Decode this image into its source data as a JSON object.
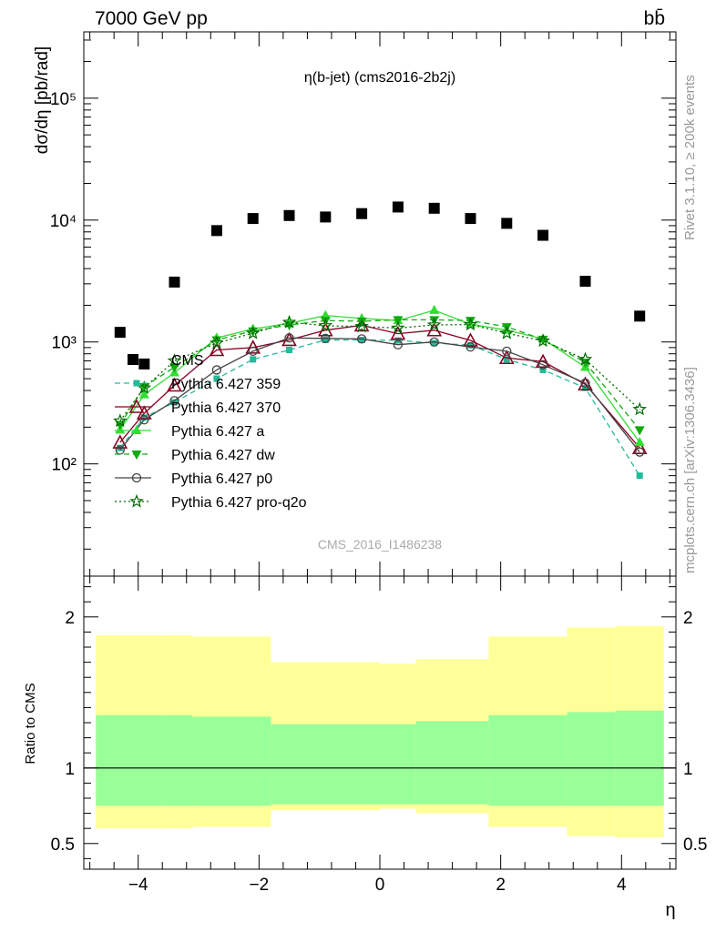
{
  "header": {
    "left_label": "7000 GeV pp",
    "right_label": "bb̄"
  },
  "side_labels": {
    "rivet": "Rivet 3.1.10, ≥ 200k events",
    "mcplots": "mcplots.cern.ch [arXiv:1306.3436]"
  },
  "chart_data": [
    {
      "type": "scatter",
      "title": "η(b-jet) (cms2016-2b2j)",
      "watermark": "CMS_2016_I1486238",
      "ylabel": "dσ/dη [pb/rad]",
      "yscale": "log",
      "ylim": [
        12,
        350000
      ],
      "xlim": [
        -4.9,
        4.9
      ],
      "y_ticks": [
        {
          "value": 100,
          "label": "10²"
        },
        {
          "value": 1000,
          "label": "10³"
        },
        {
          "value": 10000,
          "label": "10⁴"
        },
        {
          "value": 100000,
          "label": "10⁵"
        }
      ],
      "legend_position": "left-middle",
      "x": [
        -4.3,
        -3.9,
        -3.4,
        -2.7,
        -2.1,
        -1.5,
        -0.9,
        -0.3,
        0.3,
        0.9,
        1.5,
        2.1,
        2.7,
        3.4,
        4.3
      ],
      "series": [
        {
          "name": "CMS",
          "marker": "square-filled",
          "color": "#000000",
          "line": "none",
          "values": [
            1200,
            660,
            3100,
            8200,
            10300,
            10900,
            10600,
            11300,
            12800,
            12500,
            10300,
            9400,
            7500,
            3150,
            1630
          ]
        },
        {
          "name": "Pythia 6.427 359",
          "marker": "square-small",
          "color": "#22bb99",
          "line": "dashed",
          "values": [
            135,
            240,
            320,
            500,
            720,
            860,
            1040,
            1040,
            1030,
            980,
            940,
            720,
            590,
            420,
            80
          ]
        },
        {
          "name": "Pythia 6.427 370",
          "marker": "triangle-open",
          "color": "#880022",
          "line": "solid",
          "values": [
            150,
            260,
            440,
            860,
            900,
            1040,
            1250,
            1370,
            1170,
            1250,
            1030,
            740,
            690,
            450,
            135
          ]
        },
        {
          "name": "Pythia 6.427 a",
          "marker": "triangle-filled",
          "color": "#33dd33",
          "line": "solid",
          "values": [
            190,
            370,
            560,
            1080,
            1280,
            1420,
            1650,
            1560,
            1500,
            1820,
            1400,
            1250,
            1060,
            620,
            150
          ]
        },
        {
          "name": "Pythia 6.427 dw",
          "marker": "triangle-down-filled",
          "color": "#11aa11",
          "line": "dashed",
          "values": [
            210,
            430,
            620,
            1040,
            1230,
            1380,
            1500,
            1480,
            1520,
            1520,
            1500,
            1330,
            1050,
            680,
            190
          ]
        },
        {
          "name": "Pythia 6.427 p0",
          "marker": "circle-open",
          "color": "#444444",
          "line": "solid",
          "values": [
            130,
            230,
            330,
            590,
            840,
            1080,
            1070,
            1060,
            950,
            1000,
            910,
            840,
            650,
            460,
            125
          ]
        },
        {
          "name": "Pythia 6.427 pro-q2o",
          "marker": "star-open",
          "color": "#006600",
          "line": "dotted",
          "values": [
            225,
            420,
            700,
            980,
            1180,
            1450,
            1360,
            1340,
            1300,
            1380,
            1390,
            1180,
            1020,
            720,
            280
          ]
        }
      ]
    },
    {
      "type": "area",
      "ylabel": "Ratio to CMS",
      "xlabel": "η",
      "ylim": [
        0.33,
        2.27
      ],
      "xlim": [
        -4.9,
        4.9
      ],
      "x_ticks": [
        {
          "value": -4,
          "label": "−4"
        },
        {
          "value": -2,
          "label": "−2"
        },
        {
          "value": 0,
          "label": "0"
        },
        {
          "value": 2,
          "label": "2"
        },
        {
          "value": 4,
          "label": "4"
        }
      ],
      "y_ticks": [
        {
          "value": 0.5,
          "label": "0.5"
        },
        {
          "value": 1,
          "label": "1"
        },
        {
          "value": 2,
          "label": "2"
        }
      ],
      "bands": [
        {
          "x1": -4.7,
          "x2": -3.6,
          "outer": [
            0.6,
            1.88
          ],
          "inner": [
            0.75,
            1.35
          ]
        },
        {
          "x1": -3.6,
          "x2": -3.1,
          "outer": [
            0.6,
            1.88
          ],
          "inner": [
            0.75,
            1.35
          ]
        },
        {
          "x1": -3.1,
          "x2": -1.8,
          "outer": [
            0.61,
            1.87
          ],
          "inner": [
            0.75,
            1.34
          ]
        },
        {
          "x1": -1.8,
          "x2": 0.0,
          "outer": [
            0.72,
            1.7
          ],
          "inner": [
            0.76,
            1.29
          ]
        },
        {
          "x1": 0.0,
          "x2": 0.6,
          "outer": [
            0.73,
            1.69
          ],
          "inner": [
            0.76,
            1.29
          ]
        },
        {
          "x1": 0.6,
          "x2": 1.8,
          "outer": [
            0.7,
            1.72
          ],
          "inner": [
            0.76,
            1.31
          ]
        },
        {
          "x1": 1.8,
          "x2": 3.1,
          "outer": [
            0.61,
            1.87
          ],
          "inner": [
            0.75,
            1.35
          ]
        },
        {
          "x1": 3.1,
          "x2": 3.9,
          "outer": [
            0.55,
            1.93
          ],
          "inner": [
            0.75,
            1.37
          ]
        },
        {
          "x1": 3.9,
          "x2": 4.7,
          "outer": [
            0.54,
            1.94
          ],
          "inner": [
            0.75,
            1.38
          ]
        }
      ],
      "band_colors": {
        "outer": "#ffff99",
        "inner": "#99ff99"
      },
      "reference_line": 1
    }
  ]
}
